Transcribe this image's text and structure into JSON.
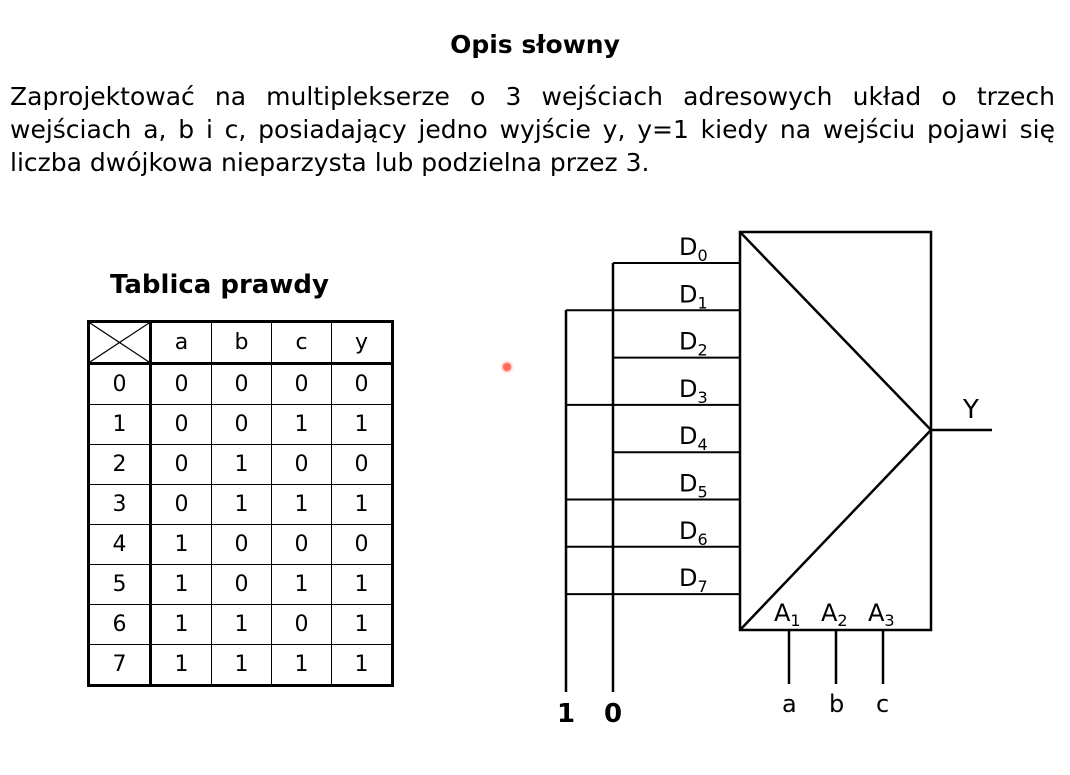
{
  "title": "Opis słowny",
  "description": "Zaprojektować na multiplekserze o 3 wejściach adresowych układ o trzech wejściach a, b i c, posiadający jedno wyjście y, y=1 kiedy na wejściu pojawi się liczba dwójkowa nieparzysta lub podzielna przez 3.",
  "truth_table": {
    "title": "Tablica prawdy",
    "headers": [
      "a",
      "b",
      "c",
      "y"
    ],
    "rows": [
      [
        "0",
        "0",
        "0",
        "0",
        "0"
      ],
      [
        "1",
        "0",
        "0",
        "1",
        "1"
      ],
      [
        "2",
        "0",
        "1",
        "0",
        "0"
      ],
      [
        "3",
        "0",
        "1",
        "1",
        "1"
      ],
      [
        "4",
        "1",
        "0",
        "0",
        "0"
      ],
      [
        "5",
        "1",
        "0",
        "1",
        "1"
      ],
      [
        "6",
        "1",
        "1",
        "0",
        "1"
      ],
      [
        "7",
        "1",
        "1",
        "1",
        "1"
      ]
    ]
  },
  "mux": {
    "inputs": [
      {
        "base": "D",
        "sub": "0",
        "source": "0"
      },
      {
        "base": "D",
        "sub": "1",
        "source": "1"
      },
      {
        "base": "D",
        "sub": "2",
        "source": "0"
      },
      {
        "base": "D",
        "sub": "3",
        "source": "1"
      },
      {
        "base": "D",
        "sub": "4",
        "source": "0"
      },
      {
        "base": "D",
        "sub": "5",
        "source": "1"
      },
      {
        "base": "D",
        "sub": "6",
        "source": "1"
      },
      {
        "base": "D",
        "sub": "7",
        "source": "1"
      }
    ],
    "output": "Y",
    "address_inputs": [
      {
        "base": "A",
        "sub": "1",
        "signal": "a"
      },
      {
        "base": "A",
        "sub": "2",
        "signal": "b"
      },
      {
        "base": "A",
        "sub": "3",
        "signal": "c"
      }
    ],
    "rail_labels": [
      "1",
      "0"
    ]
  }
}
